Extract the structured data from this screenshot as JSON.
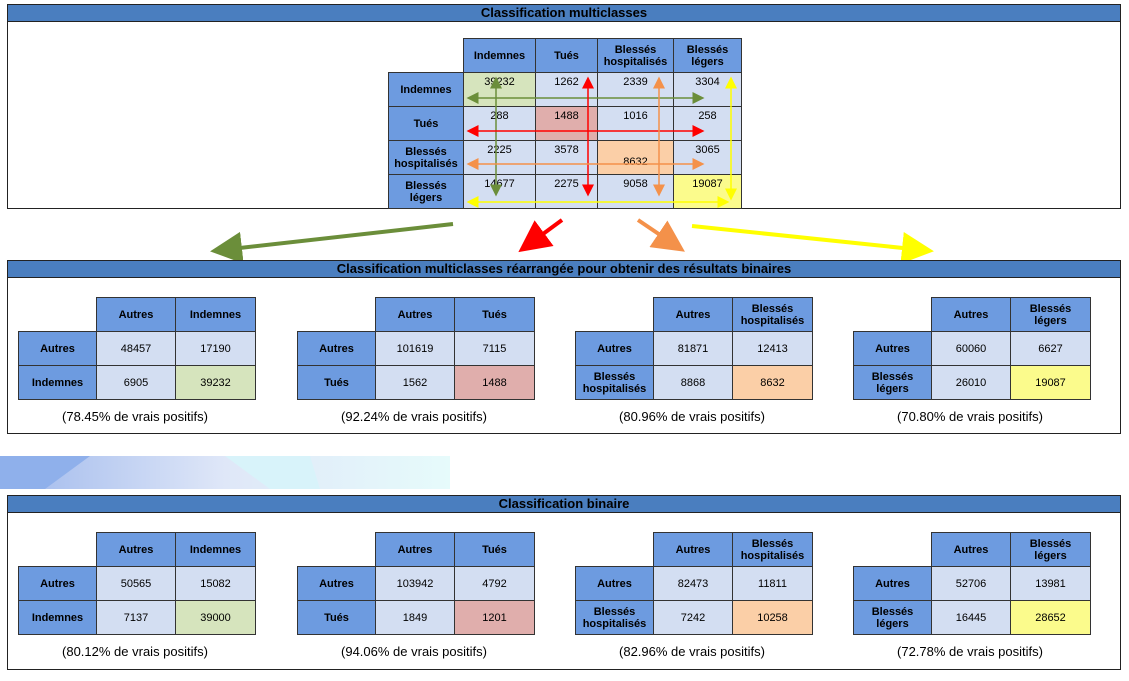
{
  "top": {
    "title": "Classification multiclasses",
    "cols": [
      "Indemnes",
      "Tués",
      "Blessés\nhospitalisés",
      "Blessés\nlégers"
    ],
    "rows": [
      {
        "label": "Indemnes",
        "values": [
          "39232",
          "1262",
          "2339",
          "3304"
        ]
      },
      {
        "label": "Tués",
        "values": [
          "288",
          "1488",
          "1016",
          "258"
        ]
      },
      {
        "label": "Blessés\nhospitalisés",
        "values": [
          "2225",
          "3578",
          "8632",
          "3065"
        ]
      },
      {
        "label": "Blessés\nlégers",
        "values": [
          "14677",
          "2275",
          "9058",
          "19087"
        ]
      }
    ],
    "arrow_colors": [
      "#6b8e3a",
      "#ff0000",
      "#f4914a",
      "#ffff00"
    ]
  },
  "middle": {
    "title": "Classification multiclasses réarrangée pour obtenir des résultats binaires",
    "tables": [
      {
        "col_a": "Autres",
        "col_b": "Indemnes",
        "row_a": "Autres",
        "row_b": "Indemnes",
        "v": [
          "48457",
          "17190",
          "6905",
          "39232"
        ],
        "pct": "(78.45% de vrais positifs)"
      },
      {
        "col_a": "Autres",
        "col_b": "Tués",
        "row_a": "Autres",
        "row_b": "Tués",
        "v": [
          "101619",
          "7115",
          "1562",
          "1488"
        ],
        "pct": "(92.24% de vrais positifs)"
      },
      {
        "col_a": "Autres",
        "col_b": "Blessés\nhospitalisés",
        "row_a": "Autres",
        "row_b": "Blessés\nhospitalisés",
        "v": [
          "81871",
          "12413",
          "8868",
          "8632"
        ],
        "pct": "(80.96% de vrais positifs)"
      },
      {
        "col_a": "Autres",
        "col_b": "Blessés\nlégers",
        "row_a": "Autres",
        "row_b": "Blessés\nlégers",
        "v": [
          "60060",
          "6627",
          "26010",
          "19087"
        ],
        "pct": "(70.80% de vrais positifs)"
      }
    ]
  },
  "bottom": {
    "title": "Classification binaire",
    "tables": [
      {
        "col_a": "Autres",
        "col_b": "Indemnes",
        "row_a": "Autres",
        "row_b": "Indemnes",
        "v": [
          "50565",
          "15082",
          "7137",
          "39000"
        ],
        "pct": "(80.12% de vrais positifs)"
      },
      {
        "col_a": "Autres",
        "col_b": "Tués",
        "row_a": "Autres",
        "row_b": "Tués",
        "v": [
          "103942",
          "4792",
          "1849",
          "1201"
        ],
        "pct": "(94.06% de vrais positifs)"
      },
      {
        "col_a": "Autres",
        "col_b": "Blessés\nhospitalisés",
        "row_a": "Autres",
        "row_b": "Blessés\nhospitalisés",
        "v": [
          "82473",
          "11811",
          "7242",
          "10258"
        ],
        "pct": "(82.96% de vrais positifs)"
      },
      {
        "col_a": "Autres",
        "col_b": "Blessés\nlégers",
        "row_a": "Autres",
        "row_b": "Blessés\nlégers",
        "v": [
          "52706",
          "13981",
          "16445",
          "28652"
        ],
        "pct": "(72.78% de vrais positifs)"
      }
    ]
  },
  "colors": {
    "header_blue": "#6d9be0",
    "cell_blue": "#d3def2",
    "title_bar": "#4a7ebf",
    "green": "#d6e4bd",
    "red": "#e0aeac",
    "orange": "#fbcfa7",
    "yellow": "#fbfb8c"
  }
}
